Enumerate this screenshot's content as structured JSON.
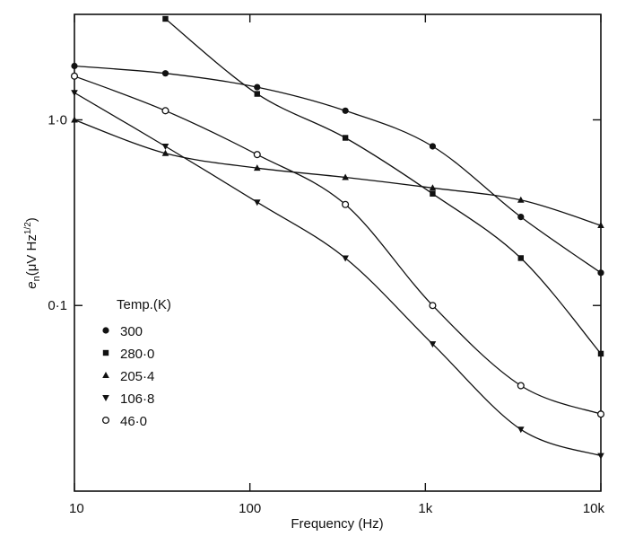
{
  "chart_data": {
    "type": "line",
    "title": "",
    "xlabel": "Frequency (Hz)",
    "ylabel": "e_n (μV Hz^1/2)",
    "ylabel_main": "e",
    "ylabel_sub": "n",
    "ylabel_rest": "(μV Hz",
    "ylabel_sup": "1/2",
    "ylabel_close": ")",
    "x_scale": "log",
    "y_scale": "log",
    "xlim": [
      10,
      10000
    ],
    "ylim": [
      0.01,
      3.7
    ],
    "x_ticks": [
      {
        "value": 10,
        "label": "10"
      },
      {
        "value": 100,
        "label": "100"
      },
      {
        "value": 1000,
        "label": "1k"
      },
      {
        "value": 10000,
        "label": "10k"
      }
    ],
    "y_ticks": [
      {
        "value": 1.0,
        "label": "1·0"
      },
      {
        "value": 0.1,
        "label": "0·1"
      }
    ],
    "grid": false,
    "legend_title": "Temp.(K)",
    "legend_position": "bottom-left",
    "series": [
      {
        "name": "300",
        "marker": "filled-circle",
        "x": [
          10,
          33,
          110,
          350,
          1100,
          3500,
          10000
        ],
        "y": [
          1.95,
          1.78,
          1.5,
          1.12,
          0.72,
          0.3,
          0.15
        ]
      },
      {
        "name": "280·0",
        "marker": "filled-square",
        "x": [
          33,
          110,
          350,
          1100,
          3500,
          10000
        ],
        "y": [
          3.5,
          1.38,
          0.8,
          0.4,
          0.18,
          0.055
        ]
      },
      {
        "name": "205·4",
        "marker": "filled-triangle-up",
        "x": [
          10,
          33,
          110,
          350,
          1100,
          3500,
          10000
        ],
        "y": [
          1.0,
          0.66,
          0.55,
          0.49,
          0.43,
          0.37,
          0.27
        ]
      },
      {
        "name": "106·8",
        "marker": "filled-triangle-down",
        "x": [
          10,
          33,
          110,
          350,
          1100,
          3500,
          10000
        ],
        "y": [
          1.4,
          0.72,
          0.36,
          0.18,
          0.062,
          0.0215,
          0.0155
        ]
      },
      {
        "name": "46·0",
        "marker": "open-circle",
        "x": [
          10,
          33,
          110,
          350,
          1100,
          3500,
          10000
        ],
        "y": [
          1.72,
          1.12,
          0.65,
          0.35,
          0.1,
          0.037,
          0.026
        ]
      }
    ]
  }
}
